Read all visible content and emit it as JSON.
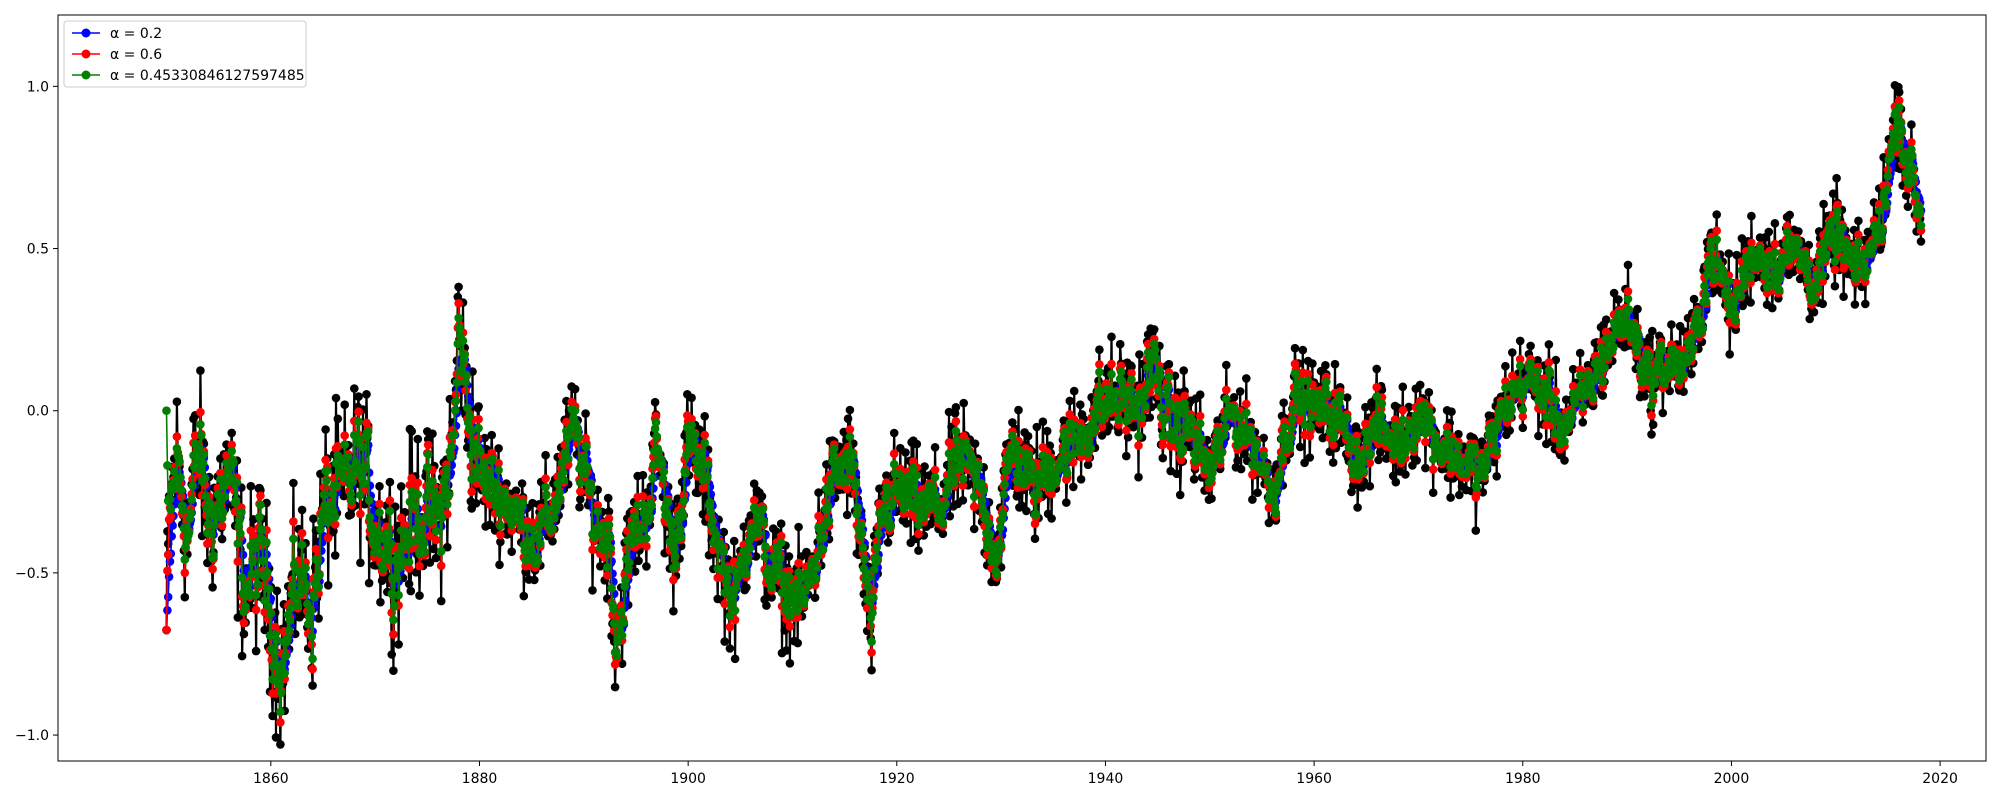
{
  "chart_data": {
    "type": "line",
    "title": "",
    "xlabel": "",
    "ylabel": "",
    "xlim": [
      1839.6,
      2024.4
    ],
    "ylim": [
      -1.08,
      1.22
    ],
    "xticks": [
      1860,
      1880,
      1900,
      1920,
      1940,
      1960,
      1980,
      2000,
      2020
    ],
    "yticks": [
      -1.0,
      -0.5,
      0.0,
      0.5,
      1.0
    ],
    "ytick_labels": [
      "−1.0",
      "−0.5",
      "0.0",
      "0.5",
      "1.0"
    ],
    "legend_position": "top-left",
    "grid": false,
    "raw_color": "#000000",
    "raw_anchors": [
      [
        1850.0,
        -0.7
      ],
      [
        1850.3,
        -0.3
      ],
      [
        1851.0,
        -0.15
      ],
      [
        1852.0,
        -0.4
      ],
      [
        1853.0,
        -0.1
      ],
      [
        1854.0,
        -0.35
      ],
      [
        1856.0,
        -0.2
      ],
      [
        1857.5,
        -0.55
      ],
      [
        1859.0,
        -0.45
      ],
      [
        1861.0,
        -0.8
      ],
      [
        1862.5,
        -0.5
      ],
      [
        1864.0,
        -0.6
      ],
      [
        1865.0,
        -0.3
      ],
      [
        1867.0,
        -0.25
      ],
      [
        1868.5,
        -0.15
      ],
      [
        1870.0,
        -0.35
      ],
      [
        1872.0,
        -0.45
      ],
      [
        1874.0,
        -0.3
      ],
      [
        1876.0,
        -0.35
      ],
      [
        1877.5,
        -0.1
      ],
      [
        1878.0,
        0.3
      ],
      [
        1878.6,
        0.05
      ],
      [
        1880.0,
        -0.2
      ],
      [
        1882.0,
        -0.25
      ],
      [
        1884.0,
        -0.35
      ],
      [
        1885.5,
        -0.4
      ],
      [
        1887.0,
        -0.3
      ],
      [
        1889.0,
        -0.05
      ],
      [
        1891.0,
        -0.35
      ],
      [
        1892.5,
        -0.4
      ],
      [
        1893.0,
        -0.75
      ],
      [
        1894.5,
        -0.4
      ],
      [
        1896.0,
        -0.3
      ],
      [
        1897.0,
        -0.1
      ],
      [
        1898.5,
        -0.45
      ],
      [
        1900.0,
        -0.1
      ],
      [
        1901.5,
        -0.2
      ],
      [
        1903.0,
        -0.45
      ],
      [
        1904.5,
        -0.6
      ],
      [
        1906.0,
        -0.3
      ],
      [
        1908.0,
        -0.5
      ],
      [
        1909.5,
        -0.55
      ],
      [
        1911.0,
        -0.6
      ],
      [
        1912.5,
        -0.4
      ],
      [
        1914.0,
        -0.2
      ],
      [
        1915.5,
        -0.15
      ],
      [
        1916.5,
        -0.4
      ],
      [
        1917.5,
        -0.7
      ],
      [
        1918.5,
        -0.3
      ],
      [
        1920.0,
        -0.25
      ],
      [
        1922.0,
        -0.3
      ],
      [
        1924.0,
        -0.3
      ],
      [
        1926.0,
        -0.15
      ],
      [
        1928.0,
        -0.25
      ],
      [
        1929.5,
        -0.45
      ],
      [
        1931.0,
        -0.1
      ],
      [
        1933.0,
        -0.25
      ],
      [
        1935.0,
        -0.15
      ],
      [
        1937.0,
        -0.1
      ],
      [
        1939.0,
        0.0
      ],
      [
        1941.0,
        0.05
      ],
      [
        1943.0,
        0.0
      ],
      [
        1944.5,
        0.15
      ],
      [
        1946.0,
        -0.05
      ],
      [
        1948.0,
        -0.05
      ],
      [
        1950.0,
        -0.2
      ],
      [
        1952.0,
        0.0
      ],
      [
        1954.0,
        -0.1
      ],
      [
        1956.0,
        -0.25
      ],
      [
        1958.0,
        0.05
      ],
      [
        1960.0,
        0.0
      ],
      [
        1962.0,
        0.0
      ],
      [
        1964.0,
        -0.15
      ],
      [
        1966.0,
        -0.05
      ],
      [
        1968.0,
        -0.1
      ],
      [
        1970.0,
        0.0
      ],
      [
        1972.0,
        -0.1
      ],
      [
        1974.0,
        -0.15
      ],
      [
        1976.0,
        -0.2
      ],
      [
        1978.0,
        0.0
      ],
      [
        1980.0,
        0.1
      ],
      [
        1982.0,
        0.05
      ],
      [
        1984.0,
        -0.05
      ],
      [
        1986.0,
        0.05
      ],
      [
        1988.0,
        0.2
      ],
      [
        1990.0,
        0.3
      ],
      [
        1992.0,
        0.1
      ],
      [
        1994.0,
        0.15
      ],
      [
        1996.0,
        0.15
      ],
      [
        1998.0,
        0.5
      ],
      [
        2000.0,
        0.3
      ],
      [
        2002.0,
        0.5
      ],
      [
        2004.0,
        0.45
      ],
      [
        2006.0,
        0.5
      ],
      [
        2008.0,
        0.4
      ],
      [
        2010.0,
        0.55
      ],
      [
        2012.0,
        0.4
      ],
      [
        2014.0,
        0.55
      ],
      [
        2016.0,
        0.95
      ],
      [
        2016.5,
        0.8
      ],
      [
        2017.0,
        0.75
      ],
      [
        2018.0,
        0.6
      ]
    ],
    "series": [
      {
        "name": "α = 0.2",
        "color": "#0000ff",
        "alpha": 0.2
      },
      {
        "name": "α = 0.6",
        "color": "#ff0000",
        "alpha": 0.6
      },
      {
        "name": "α = 0.45330846127597485",
        "color": "#008000",
        "alpha": 0.45330846127597485
      }
    ]
  }
}
